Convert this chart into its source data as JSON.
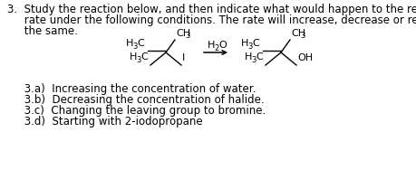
{
  "bg_color": "#ffffff",
  "text_color": "#000000",
  "line1": "3.  Study the reaction below, and then indicate what would happen to the reaction",
  "line2": "     rate under the following conditions. The rate will increase, decrease or remain",
  "line3": "     the same.",
  "bullet_a": "     3.a)  Increasing the concentration of water.",
  "bullet_b": "     3.b)  Decreasing the concentration of halide.",
  "bullet_c": "     3.c)  Changing the leaving group to bromine.",
  "bullet_d": "     3.d)  Starting with 2-iodopropane",
  "font_size": 8.5,
  "font_family": "DejaVu Sans"
}
